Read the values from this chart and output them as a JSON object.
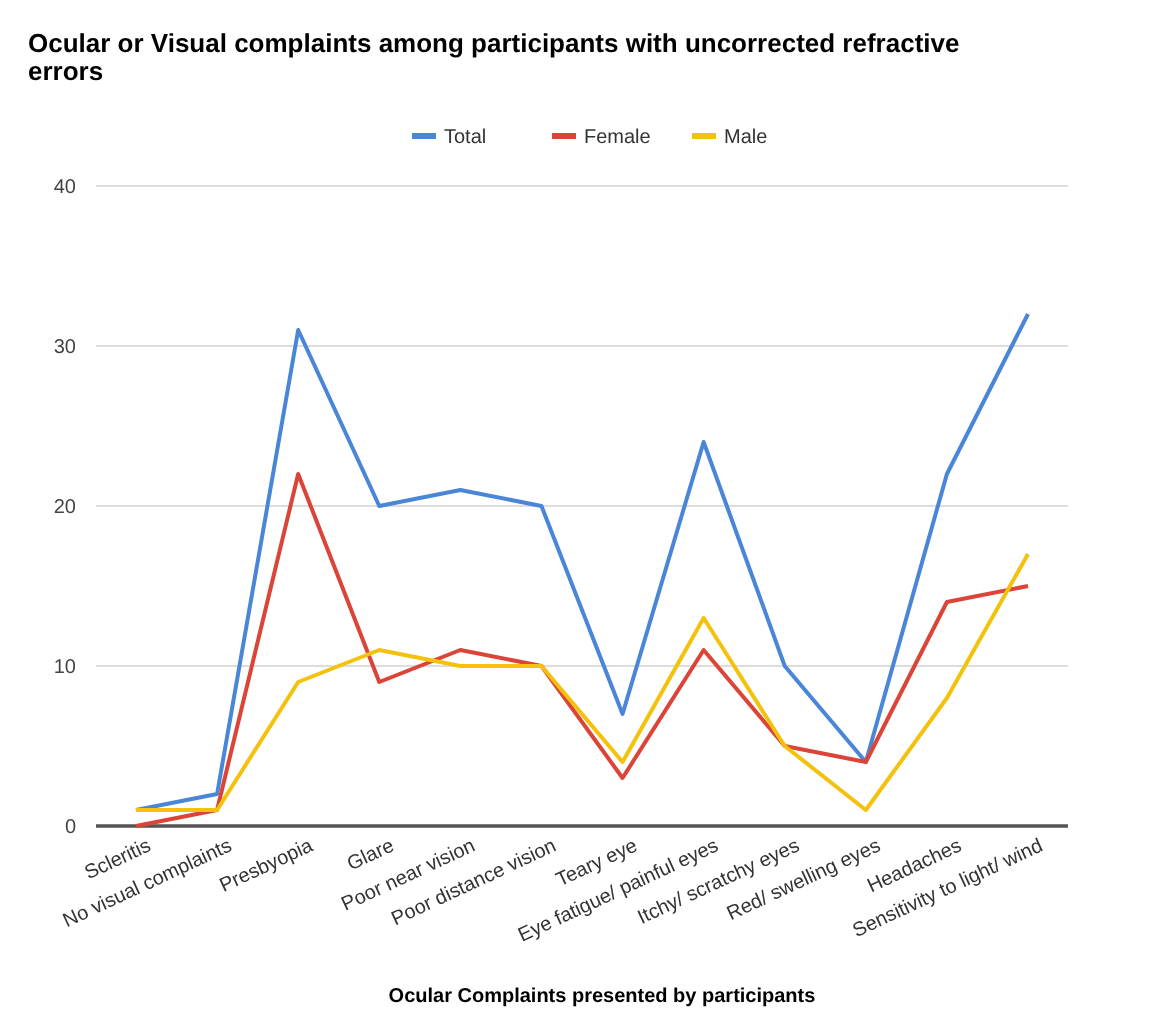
{
  "chart_data": {
    "type": "line",
    "title": "Ocular or Visual complaints among participants with uncorrected refractive errors",
    "xlabel": "Ocular Complaints presented by participants",
    "categories": [
      "Scleritis",
      "No visual complaints",
      "Presbyopia",
      "Glare",
      "Poor near vision",
      "Poor distance vision",
      "Teary eye",
      "Eye fatigue/ painful eyes",
      "Itchy/ scratchy eyes",
      "Red/ swelling eyes",
      "Headaches",
      "Sensitivity to light/ wind"
    ],
    "series": [
      {
        "name": "Total",
        "color": "#4a86d8",
        "values": [
          1,
          2,
          31,
          20,
          21,
          20,
          7,
          24,
          10,
          4,
          22,
          32
        ]
      },
      {
        "name": "Female",
        "color": "#db4437",
        "values": [
          0,
          1,
          22,
          9,
          11,
          10,
          3,
          11,
          5,
          4,
          14,
          15
        ]
      },
      {
        "name": "Male",
        "color": "#f4c20d",
        "values": [
          1,
          1,
          9,
          11,
          10,
          10,
          4,
          13,
          5,
          1,
          8,
          17
        ]
      }
    ],
    "ylim": [
      0,
      40
    ],
    "yticks": [
      0,
      10,
      20,
      30,
      40
    ],
    "grid": "y",
    "legend": "top",
    "marker": "none",
    "line_style": "solid"
  }
}
